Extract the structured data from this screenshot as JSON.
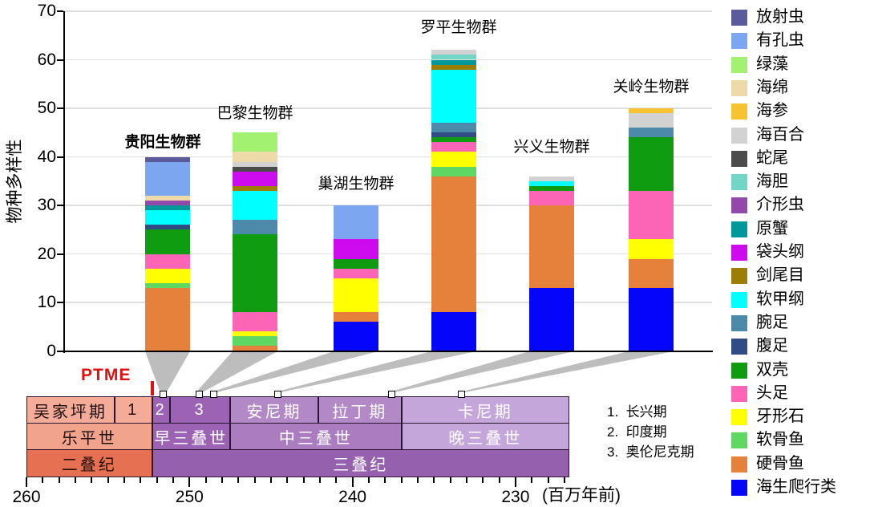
{
  "chart_data": {
    "type": "bar",
    "stacked": true,
    "title": "",
    "ylabel": "物种多样性",
    "ylim": [
      0,
      70
    ],
    "yticks": [
      0,
      10,
      20,
      30,
      40,
      50,
      60,
      70
    ],
    "x_axis": {
      "unit_label": "(百万年前)",
      "ticks": [
        260,
        250,
        240,
        230
      ],
      "direction": "older-to-younger"
    },
    "legend_position": "right",
    "grid": true,
    "taxa": [
      {
        "name": "放射虫",
        "color": "#5b5b9b"
      },
      {
        "name": "有孔虫",
        "color": "#7ca6f0"
      },
      {
        "name": "绿藻",
        "color": "#a3f170"
      },
      {
        "name": "海绵",
        "color": "#eed9a8"
      },
      {
        "name": "海参",
        "color": "#f7c331"
      },
      {
        "name": "海百合",
        "color": "#d2d2d2"
      },
      {
        "name": "蛇尾",
        "color": "#4b4b4b"
      },
      {
        "name": "海胆",
        "color": "#72d5c6"
      },
      {
        "name": "介形虫",
        "color": "#9349a9"
      },
      {
        "name": "原蟹",
        "color": "#00999b"
      },
      {
        "name": "袋头纲",
        "color": "#ce0bef"
      },
      {
        "name": "剑尾目",
        "color": "#9c7e06"
      },
      {
        "name": "软甲纲",
        "color": "#00ffff"
      },
      {
        "name": "腕足",
        "color": "#4d8aa9"
      },
      {
        "name": "腹足",
        "color": "#2f4c84"
      },
      {
        "name": "双壳",
        "color": "#109c10"
      },
      {
        "name": "头足",
        "color": "#fc64b6"
      },
      {
        "name": "牙形石",
        "color": "#ffff00"
      },
      {
        "name": "软骨鱼",
        "color": "#5fd763"
      },
      {
        "name": "硬骨鱼",
        "color": "#e6813c"
      },
      {
        "name": "海生爬行类",
        "color": "#0505fa"
      }
    ],
    "biotas": [
      {
        "name": "贵阳生物群",
        "bold": true,
        "age_ma": 251.6,
        "total": 40,
        "counts": {
          "硬骨鱼": 13,
          "软骨鱼": 1,
          "牙形石": 3,
          "头足": 3,
          "双壳": 5,
          "腹足": 1,
          "软甲纲": 3,
          "原蟹": 1,
          "介形虫": 1,
          "海绵": 1,
          "有孔虫": 7,
          "放射虫": 1
        }
      },
      {
        "name": "巴黎生物群",
        "bold": false,
        "age_ma": 249.4,
        "total": 45,
        "counts": {
          "硬骨鱼": 1,
          "软骨鱼": 2,
          "牙形石": 1,
          "头足": 4,
          "双壳": 16,
          "腕足": 3,
          "软甲纲": 6,
          "剑尾目": 1,
          "袋头纲": 3,
          "蛇尾": 1,
          "海百合": 1,
          "海绵": 2,
          "绿藻": 4
        }
      },
      {
        "name": "巢湖生物群",
        "bold": false,
        "age_ma": 248.5,
        "total": 30,
        "counts": {
          "海生爬行类": 6,
          "硬骨鱼": 2,
          "牙形石": 7,
          "头足": 2,
          "双壳": 2,
          "袋头纲": 4,
          "有孔虫": 7
        }
      },
      {
        "name": "罗平生物群",
        "bold": false,
        "age_ma": 244.6,
        "total": 62,
        "counts": {
          "海生爬行类": 8,
          "硬骨鱼": 28,
          "软骨鱼": 2,
          "牙形石": 3,
          "头足": 2,
          "双壳": 1,
          "腹足": 1,
          "腕足": 2,
          "软甲纲": 11,
          "剑尾目": 1,
          "原蟹": 1,
          "海胆": 1,
          "海百合": 1
        }
      },
      {
        "name": "兴义生物群",
        "bold": false,
        "age_ma": 237.6,
        "total": 36,
        "counts": {
          "海生爬行类": 13,
          "硬骨鱼": 17,
          "头足": 3,
          "双壳": 1,
          "软甲纲": 1,
          "海百合": 1
        }
      },
      {
        "name": "关岭生物群",
        "bold": false,
        "age_ma": 233.3,
        "total": 50,
        "counts": {
          "海生爬行类": 13,
          "硬骨鱼": 6,
          "牙形石": 4,
          "头足": 10,
          "双壳": 11,
          "腕足": 2,
          "海百合": 3,
          "海参": 1
        }
      }
    ]
  },
  "timeline": {
    "span_ma": [
      260,
      226.7
    ],
    "rows": [
      {
        "name": "stages",
        "cells": [
          {
            "label": "吴家坪期",
            "from": 260,
            "to": 254.6,
            "bg": "#f4ab97",
            "fg": "#1f1012"
          },
          {
            "label": "1",
            "from": 254.6,
            "to": 252.3,
            "bg": "#f4ab97",
            "fg": "#1f1012"
          },
          {
            "label": "2",
            "from": 252.3,
            "to": 251.2,
            "bg": "#9c63b4",
            "fg": "#ffffff"
          },
          {
            "label": "3",
            "from": 251.2,
            "to": 247.5,
            "bg": "#9c63b4",
            "fg": "#ffffff"
          },
          {
            "label": "安尼期",
            "from": 247.5,
            "to": 242.1,
            "bg": "#b288c7",
            "fg": "#ffffff"
          },
          {
            "label": "拉丁期",
            "from": 242.1,
            "to": 237.0,
            "bg": "#b288c7",
            "fg": "#ffffff"
          },
          {
            "label": "卡尼期",
            "from": 237.0,
            "to": 226.7,
            "bg": "#c5a6da",
            "fg": "#ffffff"
          }
        ]
      },
      {
        "name": "epochs",
        "cells": [
          {
            "label": "乐平世",
            "from": 260,
            "to": 252.3,
            "bg": "#f2a38c",
            "fg": "#1f1012"
          },
          {
            "label": "早三叠世",
            "from": 252.3,
            "to": 247.5,
            "bg": "#9c63b4",
            "fg": "#ffffff"
          },
          {
            "label": "中三叠世",
            "from": 247.5,
            "to": 237.0,
            "bg": "#ab7dc0",
            "fg": "#ffffff"
          },
          {
            "label": "晚三叠世",
            "from": 237.0,
            "to": 226.7,
            "bg": "#c5a6da",
            "fg": "#ffffff"
          }
        ]
      },
      {
        "name": "periods",
        "cells": [
          {
            "label": "二叠纪",
            "from": 260,
            "to": 252.3,
            "bg": "#e57052",
            "fg": "#2a1008"
          },
          {
            "label": "三叠纪",
            "from": 252.3,
            "to": 226.7,
            "bg": "#9560ae",
            "fg": "#ffffff"
          }
        ]
      }
    ],
    "notes": [
      {
        "num": "1.",
        "label": "长兴期"
      },
      {
        "num": "2.",
        "label": "印度期"
      },
      {
        "num": "3.",
        "label": "奥伦尼克期"
      }
    ]
  },
  "annotations": {
    "ptme": {
      "label": "PTME",
      "color": "#e11010",
      "age_ma": 252.3
    },
    "connector_color": "#bdbdbd"
  }
}
